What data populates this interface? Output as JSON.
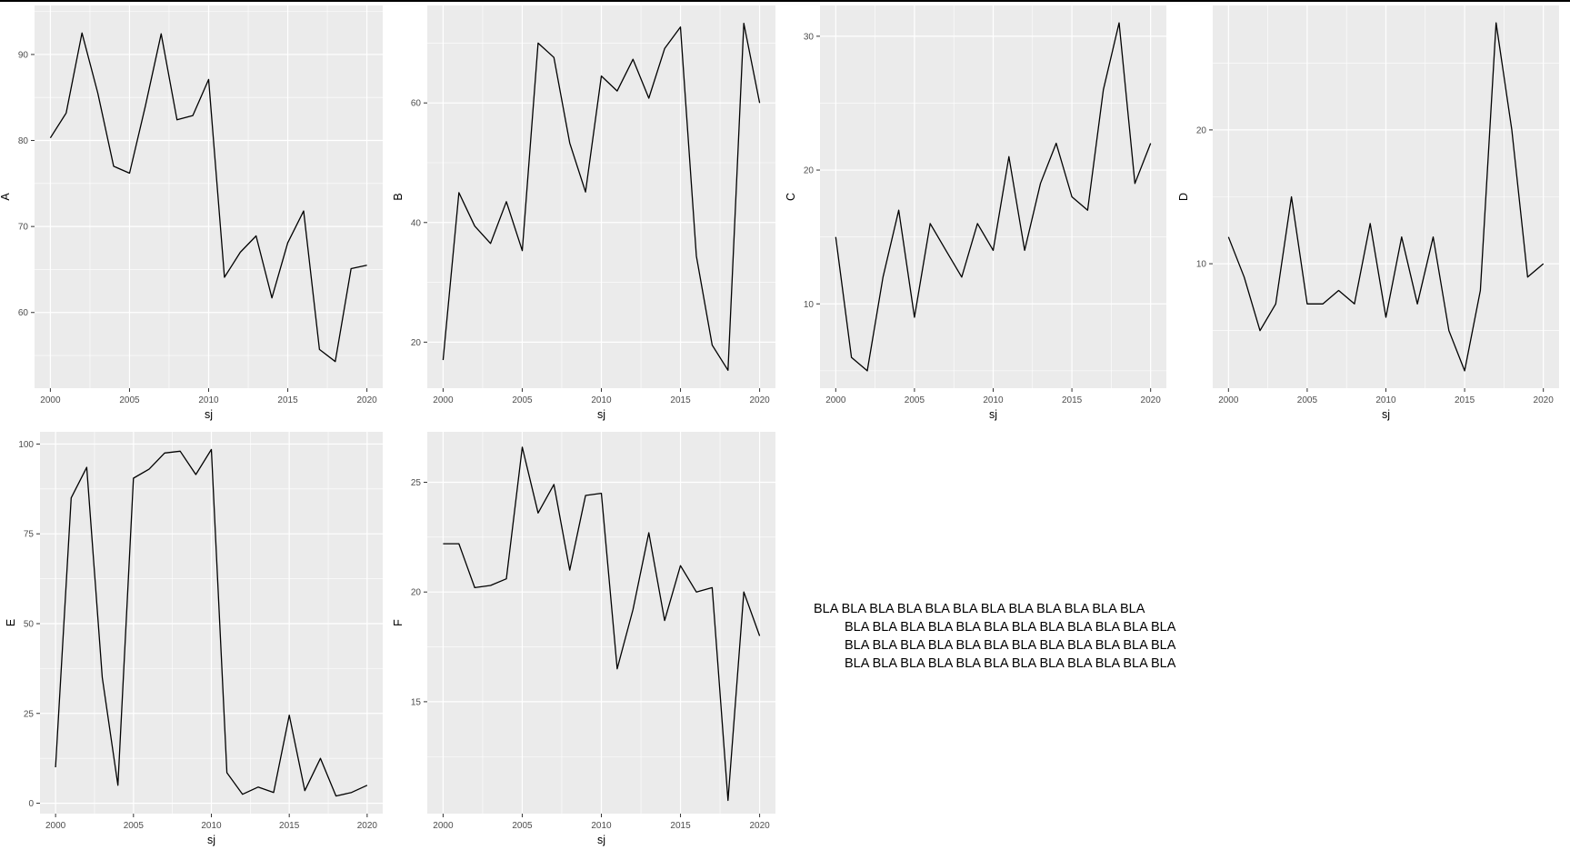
{
  "chart_data": [
    {
      "type": "line",
      "xlabel": "sj",
      "ylabel": "A",
      "x": [
        2000,
        2001,
        2002,
        2003,
        2004,
        2005,
        2006,
        2007,
        2008,
        2009,
        2010,
        2011,
        2012,
        2013,
        2014,
        2015,
        2016,
        2017,
        2018,
        2019,
        2020
      ],
      "values": [
        80.3,
        83.2,
        92.5,
        85.5,
        77.0,
        76.2,
        84.0,
        92.4,
        82.4,
        82.9,
        87.1,
        64.1,
        67.0,
        68.9,
        61.7,
        68.1,
        71.8,
        55.7,
        54.3,
        65.1,
        65.5
      ],
      "xlim": [
        1999.0,
        2021.0
      ],
      "ylim": [
        51.2,
        95.7
      ],
      "xticks": [
        2000,
        2005,
        2010,
        2015,
        2020
      ],
      "yticks": [
        60,
        70,
        80,
        90
      ],
      "grid": true
    },
    {
      "type": "line",
      "xlabel": "sj",
      "ylabel": "B",
      "x": [
        2000,
        2001,
        2002,
        2003,
        2004,
        2005,
        2006,
        2007,
        2008,
        2009,
        2010,
        2011,
        2012,
        2013,
        2014,
        2015,
        2016,
        2017,
        2018,
        2019,
        2020
      ],
      "values": [
        17.0,
        45.0,
        39.4,
        36.5,
        43.5,
        35.3,
        70.0,
        67.6,
        53.3,
        45.1,
        64.5,
        62.0,
        67.3,
        60.8,
        69.1,
        72.7,
        34.4,
        19.5,
        15.3,
        73.3,
        60.0
      ],
      "xlim": [
        1999.0,
        2021.0
      ],
      "ylim": [
        12.3,
        76.3
      ],
      "xticks": [
        2000,
        2005,
        2010,
        2015,
        2020
      ],
      "yticks": [
        20,
        40,
        60
      ],
      "grid": true
    },
    {
      "type": "line",
      "xlabel": "sj",
      "ylabel": "C",
      "x": [
        2000,
        2001,
        2002,
        2003,
        2004,
        2005,
        2006,
        2007,
        2008,
        2009,
        2010,
        2011,
        2012,
        2013,
        2014,
        2015,
        2016,
        2017,
        2018,
        2019,
        2020
      ],
      "values": [
        15,
        6,
        5,
        12,
        17,
        9,
        16,
        14,
        12,
        16,
        14,
        21,
        14,
        19,
        22,
        18,
        17,
        26,
        31,
        19,
        22
      ],
      "xlim": [
        1999.0,
        2021.0
      ],
      "ylim": [
        3.7,
        32.3
      ],
      "xticks": [
        2000,
        2005,
        2010,
        2015,
        2020
      ],
      "yticks": [
        10,
        20,
        30
      ],
      "grid": true
    },
    {
      "type": "line",
      "xlabel": "sj",
      "ylabel": "D",
      "x": [
        2000,
        2001,
        2002,
        2003,
        2004,
        2005,
        2006,
        2007,
        2008,
        2009,
        2010,
        2011,
        2012,
        2013,
        2014,
        2015,
        2016,
        2017,
        2018,
        2019,
        2020
      ],
      "values": [
        12,
        9,
        5,
        7,
        15,
        7,
        7,
        8,
        7,
        13,
        6,
        12,
        7,
        12,
        5,
        2,
        8,
        28,
        20,
        9,
        10
      ],
      "xlim": [
        1999.0,
        2021.0
      ],
      "ylim": [
        0.7,
        29.3
      ],
      "xticks": [
        2000,
        2005,
        2010,
        2015,
        2020
      ],
      "yticks": [
        10,
        20
      ],
      "grid": true
    },
    {
      "type": "line",
      "xlabel": "sj",
      "ylabel": "E",
      "x": [
        2000,
        2001,
        2002,
        2003,
        2004,
        2005,
        2006,
        2007,
        2008,
        2009,
        2010,
        2011,
        2012,
        2013,
        2014,
        2015,
        2016,
        2017,
        2018,
        2019,
        2020
      ],
      "values": [
        10.0,
        85.0,
        93.5,
        35.0,
        5.0,
        90.5,
        93.0,
        97.5,
        98.0,
        91.5,
        98.5,
        8.5,
        2.5,
        4.5,
        3.0,
        24.5,
        3.5,
        12.5,
        2.0,
        3.0,
        5.0
      ],
      "xlim": [
        1999.0,
        2021.0
      ],
      "ylim": [
        -2.9,
        103.4
      ],
      "xticks": [
        2000,
        2005,
        2010,
        2015,
        2020
      ],
      "yticks": [
        0,
        25,
        50,
        75,
        100
      ],
      "grid": true
    },
    {
      "type": "line",
      "xlabel": "sj",
      "ylabel": "F",
      "x": [
        2000,
        2001,
        2002,
        2003,
        2004,
        2005,
        2006,
        2007,
        2008,
        2009,
        2010,
        2011,
        2012,
        2013,
        2014,
        2015,
        2016,
        2017,
        2018,
        2019,
        2020
      ],
      "values": [
        22.2,
        22.2,
        20.2,
        20.3,
        20.6,
        26.6,
        23.6,
        24.9,
        21.0,
        24.4,
        24.5,
        16.5,
        19.2,
        22.7,
        18.7,
        21.2,
        20.0,
        20.2,
        10.5,
        20.0,
        18.0
      ],
      "xlim": [
        1999.0,
        2021.0
      ],
      "ylim": [
        9.9,
        27.3
      ],
      "xticks": [
        2000,
        2005,
        2010,
        2015,
        2020
      ],
      "yticks": [
        15,
        20,
        25
      ],
      "grid": true
    }
  ],
  "note": {
    "line1": "BLA BLA BLA BLA BLA BLA BLA BLA BLA BLA BLA BLA",
    "line2": "BLA BLA BLA BLA BLA BLA BLA BLA BLA BLA BLA BLA",
    "line3": "BLA BLA BLA BLA BLA BLA BLA BLA BLA BLA BLA BLA",
    "line4": "BLA BLA BLA BLA BLA BLA BLA BLA BLA BLA BLA BLA"
  }
}
